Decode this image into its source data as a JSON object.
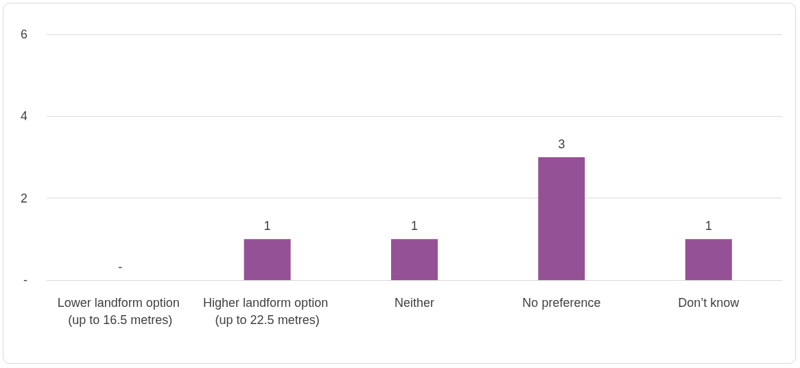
{
  "chart_data": {
    "type": "bar",
    "categories": [
      "Lower landform option (up to 16.5 metres)",
      "Higher landform option (up to 22.5 metres)",
      "Neither",
      "No preference",
      "Don’t know"
    ],
    "values": [
      0,
      1,
      1,
      3,
      1
    ],
    "value_labels": [
      "-",
      "1",
      "1",
      "3",
      "1"
    ],
    "color": "#955196",
    "ylim": [
      0,
      6
    ],
    "yticks": [
      {
        "value": 0,
        "label": "-"
      },
      2,
      4,
      6
    ],
    "grid": "y"
  }
}
